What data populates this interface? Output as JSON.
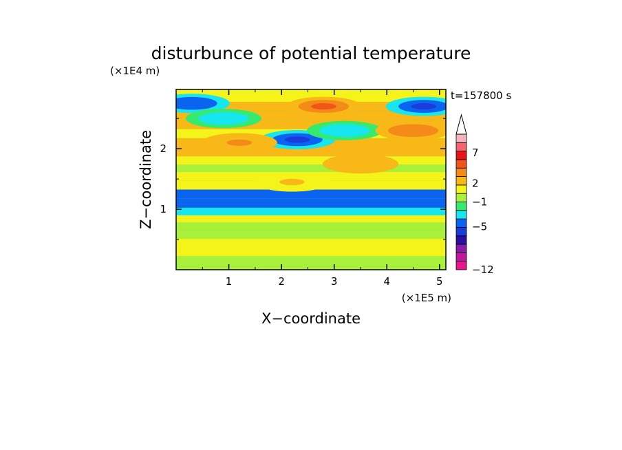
{
  "chart_data": {
    "type": "heatmap",
    "title": "disturbunce of potential temperature",
    "xlabel": "X−coordinate",
    "ylabel": "Z−coordinate",
    "x_unit": "(×1E5 m)",
    "y_unit": "(×1E4 m)",
    "time_label": "t=157800 s",
    "xlim": [
      0,
      5.12
    ],
    "ylim": [
      0,
      2.98
    ],
    "x_ticks": [
      1,
      2,
      3,
      4,
      5
    ],
    "x_tick_labels": [
      "1",
      "2",
      "3",
      "4",
      "5"
    ],
    "y_ticks": [
      1,
      2
    ],
    "y_tick_labels": [
      "1",
      "2"
    ],
    "colorbar": {
      "tick_labels": [
        "7",
        "2",
        "−1",
        "−5",
        "−12"
      ],
      "tick_values": [
        7,
        2,
        -1,
        -5,
        -12
      ],
      "extend": "max",
      "colors": [
        "#e8158c",
        "#c0189c",
        "#8a1aa8",
        "#2a0fa0",
        "#1a3cdc",
        "#0a64f0",
        "#18e6ee",
        "#36ea6e",
        "#a8f03a",
        "#f4f41a",
        "#f7b818",
        "#f48a18",
        "#f0561a",
        "#e8141a",
        "#f4646e",
        "#f4b4bc"
      ]
    },
    "bands": [
      {
        "z": 0.15,
        "value": 0.0
      },
      {
        "z": 0.3,
        "value": 1.5
      },
      {
        "z": 0.45,
        "value": 1.0
      },
      {
        "z": 0.58,
        "value": 0.0
      },
      {
        "z": 0.72,
        "value": -0.5
      },
      {
        "z": 0.85,
        "value": 0.5
      },
      {
        "z": 0.95,
        "value": -3.5
      },
      {
        "z": 1.1,
        "value": -4.5
      },
      {
        "z": 1.25,
        "value": -4.0
      },
      {
        "z": 1.4,
        "value": 0.5
      },
      {
        "z": 1.55,
        "value": 1.5
      },
      {
        "z": 1.68,
        "value": 0.0
      },
      {
        "z": 1.8,
        "value": 1.0
      },
      {
        "z": 1.95,
        "value": 2.0
      },
      {
        "z": 2.1,
        "value": 2.5
      },
      {
        "z": 2.25,
        "value": 1.5
      },
      {
        "z": 2.4,
        "value": 2.0
      },
      {
        "z": 2.55,
        "value": 3.0
      },
      {
        "z": 2.7,
        "value": 2.5
      },
      {
        "z": 2.85,
        "value": 1.0
      }
    ],
    "features": [
      {
        "x": 0.3,
        "z": 2.75,
        "value": -5.0
      },
      {
        "x": 0.9,
        "z": 2.5,
        "value": -3.5
      },
      {
        "x": 2.3,
        "z": 2.15,
        "value": -5.5
      },
      {
        "x": 3.2,
        "z": 2.3,
        "value": -3.0
      },
      {
        "x": 4.7,
        "z": 2.7,
        "value": -6.0
      },
      {
        "x": 4.5,
        "z": 2.3,
        "value": 4.0
      },
      {
        "x": 2.8,
        "z": 2.7,
        "value": 4.5
      },
      {
        "x": 1.2,
        "z": 2.1,
        "value": 3.5
      },
      {
        "x": 3.5,
        "z": 1.75,
        "value": 3.0
      },
      {
        "x": 2.2,
        "z": 1.45,
        "value": 2.0
      }
    ]
  }
}
